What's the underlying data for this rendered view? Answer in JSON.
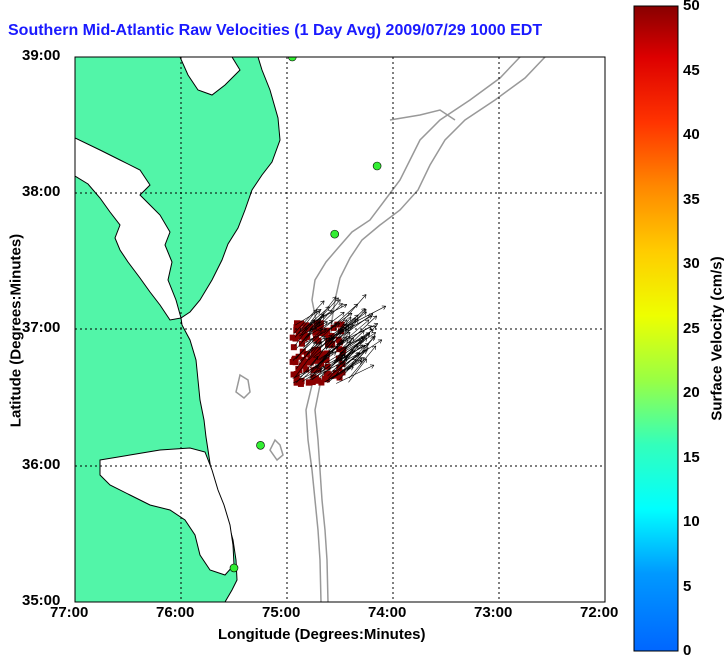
{
  "title": "Southern Mid-Atlantic Raw Velocities (1 Day Avg) 2009/07/29 1000 EDT",
  "map": {
    "xlabel": "Longitude (Degrees:Minutes)",
    "ylabel": "Latitude (Degrees:Minutes)",
    "x_ticks": [
      "77:00",
      "76:00",
      "75:00",
      "74:00",
      "73:00",
      "72:00"
    ],
    "y_ticks": [
      "39:00",
      "38:00",
      "37:00",
      "36:00",
      "35:00"
    ],
    "lon_range": [
      -77,
      -72
    ],
    "lat_range": [
      35,
      39
    ],
    "grid": true,
    "land_color": "#52f5a8",
    "water_color": "#ffffff",
    "bathymetry_color": "#999999",
    "station_color": "#33ee33"
  },
  "colorbar": {
    "label": "Surface Velocity (cm/s)",
    "ticks": [
      "50",
      "45",
      "40",
      "35",
      "30",
      "25",
      "20",
      "15",
      "10",
      "5",
      "0"
    ],
    "min": 0,
    "max": 50,
    "colormap": "jet"
  },
  "chart_data": {
    "type": "vector-field",
    "stations": [
      {
        "lon": -74.95,
        "lat": 39.0
      },
      {
        "lon": -74.15,
        "lat": 38.2
      },
      {
        "lon": -74.55,
        "lat": 37.7
      },
      {
        "lon": -75.25,
        "lat": 36.15
      },
      {
        "lon": -75.5,
        "lat": 35.25
      }
    ],
    "velocity_region": {
      "lon_range": [
        -74.95,
        -74.05
      ],
      "lat_range": [
        36.6,
        37.05
      ],
      "speed_cm_s": 50
    }
  }
}
